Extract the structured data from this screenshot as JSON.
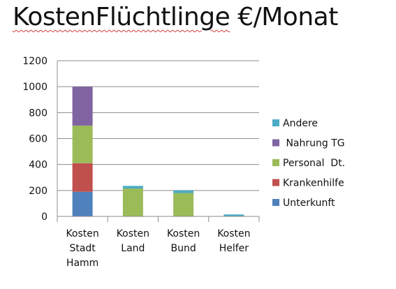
{
  "slide": {
    "title": "KostenFlüchtlinge",
    "title_suffix": " €/Monat"
  },
  "chart_data": {
    "type": "bar",
    "stacked": true,
    "categories": [
      [
        "Kosten",
        "Stadt",
        "Hamm"
      ],
      [
        "Kosten",
        "Land"
      ],
      [
        "Kosten",
        "Bund"
      ],
      [
        "Kosten",
        "Helfer"
      ]
    ],
    "series": [
      {
        "name": "Unterkunft",
        "color": "#4f81bd",
        "values": [
          190,
          0,
          0,
          0
        ]
      },
      {
        "name": "Krankenhilfe",
        "color": "#c0504d",
        "values": [
          220,
          0,
          0,
          0
        ]
      },
      {
        "name": "Personal  Dt.",
        "color": "#9bbb59",
        "values": [
          290,
          215,
          180,
          0
        ]
      },
      {
        "name": " Nahrung TG",
        "color": "#8064a2",
        "values": [
          300,
          0,
          0,
          0
        ]
      },
      {
        "name": "Andere",
        "color": "#4bacc6",
        "values": [
          0,
          20,
          20,
          15
        ]
      }
    ],
    "ylim": [
      0,
      1200
    ],
    "yticks": [
      0,
      200,
      400,
      600,
      800,
      1000,
      1200
    ],
    "grid": true,
    "legend_position": "right",
    "legend_order": "reverse"
  }
}
